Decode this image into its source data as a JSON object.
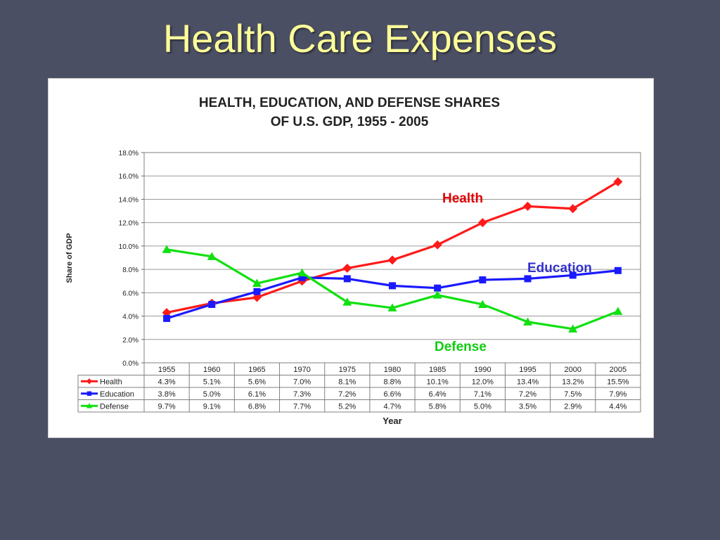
{
  "slide": {
    "title": "Health Care Expenses"
  },
  "colors": {
    "background": "#4b4f63",
    "title": "#ffff99",
    "health": "#ff1a1a",
    "education": "#1a1aff",
    "defense": "#11e011",
    "health_label": "#e00000",
    "education_label": "#3333cc",
    "defense_label": "#11cc11"
  },
  "chart_data": {
    "type": "line",
    "title_lines": [
      "HEALTH, EDUCATION, AND DEFENSE SHARES",
      "OF U.S. GDP, 1955 - 2005"
    ],
    "xlabel": "Year",
    "ylabel": "Share of GDP",
    "ylim": [
      0,
      18
    ],
    "y_ticks": [
      "0.0%",
      "2.0%",
      "4.0%",
      "6.0%",
      "8.0%",
      "10.0%",
      "12.0%",
      "14.0%",
      "16.0%",
      "18.0%"
    ],
    "categories": [
      "1955",
      "1960",
      "1965",
      "1970",
      "1975",
      "1980",
      "1985",
      "1990",
      "1995",
      "2000",
      "2005"
    ],
    "grid": true,
    "legend": "data-table-left",
    "series": [
      {
        "name": "Health",
        "marker": "diamond",
        "label": "Health",
        "values": [
          4.3,
          5.1,
          5.6,
          7.0,
          8.1,
          8.8,
          10.1,
          12.0,
          13.4,
          13.2,
          15.5
        ],
        "table": [
          "4.3%",
          "5.1%",
          "5.6%",
          "7.0%",
          "8.1%",
          "8.8%",
          "10.1%",
          "12.0%",
          "13.4%",
          "13.2%",
          "15.5%"
        ]
      },
      {
        "name": "Education",
        "marker": "square",
        "label": "Education",
        "values": [
          3.8,
          5.0,
          6.1,
          7.3,
          7.2,
          6.6,
          6.4,
          7.1,
          7.2,
          7.5,
          7.9
        ],
        "table": [
          "3.8%",
          "5.0%",
          "6.1%",
          "7.3%",
          "7.2%",
          "6.6%",
          "6.4%",
          "7.1%",
          "7.2%",
          "7.5%",
          "7.9%"
        ]
      },
      {
        "name": "Defense",
        "marker": "triangle",
        "label": "Defense",
        "values": [
          9.7,
          9.1,
          6.8,
          7.7,
          5.2,
          4.7,
          5.8,
          5.0,
          3.5,
          2.9,
          4.4
        ],
        "table": [
          "9.7%",
          "9.1%",
          "6.8%",
          "7.7%",
          "5.2%",
          "4.7%",
          "5.8%",
          "5.0%",
          "3.5%",
          "2.9%",
          "4.4%"
        ]
      }
    ]
  }
}
